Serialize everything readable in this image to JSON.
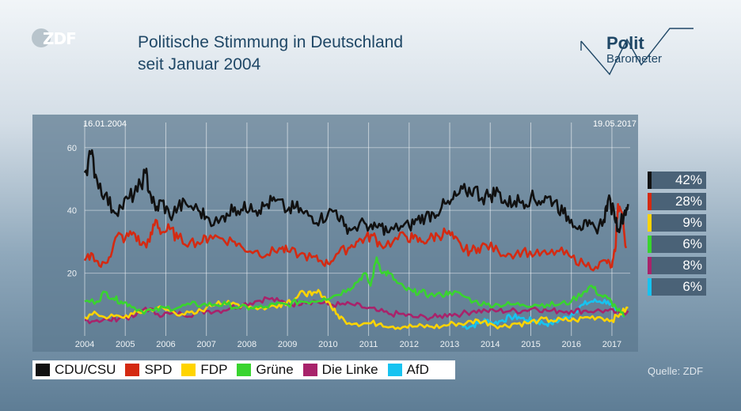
{
  "header": {
    "logo": "ZDF",
    "title_line1": "Politische Stimmung in Deutschland",
    "title_line2": "seit Januar 2004",
    "brand_line1": "Polit",
    "brand_line2": "Barometer"
  },
  "source": "Quelle: ZDF",
  "colors": {
    "CDU/CSU": "#111111",
    "SPD": "#d42a12",
    "FDP": "#ffd400",
    "Grüne": "#39d42f",
    "Die Linke": "#a8236b",
    "AfD": "#17c3f0"
  },
  "chart_data": {
    "type": "line",
    "title": "Politische Stimmung in Deutschland seit Januar 2004",
    "date_start": "16.01.2004",
    "date_end": "19.05.2017",
    "xlim": [
      2004.0,
      2017.45
    ],
    "ylim": [
      0,
      68
    ],
    "y_ticks": [
      20,
      40,
      60
    ],
    "x_ticks": [
      "2004",
      "2005",
      "2006",
      "2007",
      "2008",
      "2009",
      "2010",
      "2011",
      "2012",
      "2013",
      "2014",
      "2015",
      "2016",
      "2017"
    ],
    "series": [
      {
        "name": "CDU/CSU",
        "current": "42%",
        "points": [
          [
            2004.0,
            52
          ],
          [
            2004.15,
            58
          ],
          [
            2004.3,
            50
          ],
          [
            2004.5,
            45
          ],
          [
            2004.7,
            40
          ],
          [
            2004.9,
            41
          ],
          [
            2005.1,
            44
          ],
          [
            2005.3,
            46
          ],
          [
            2005.5,
            52
          ],
          [
            2005.6,
            46
          ],
          [
            2005.75,
            40
          ],
          [
            2005.9,
            43
          ],
          [
            2006.1,
            38
          ],
          [
            2006.3,
            41
          ],
          [
            2006.5,
            42
          ],
          [
            2006.8,
            40
          ],
          [
            2007.0,
            38
          ],
          [
            2007.3,
            36
          ],
          [
            2007.5,
            39
          ],
          [
            2007.7,
            41
          ],
          [
            2007.9,
            40
          ],
          [
            2008.1,
            42
          ],
          [
            2008.3,
            40
          ],
          [
            2008.5,
            42
          ],
          [
            2008.7,
            43
          ],
          [
            2009.0,
            40
          ],
          [
            2009.2,
            41
          ],
          [
            2009.4,
            39
          ],
          [
            2009.6,
            38
          ],
          [
            2009.8,
            37
          ],
          [
            2010.0,
            39
          ],
          [
            2010.2,
            40
          ],
          [
            2010.4,
            35
          ],
          [
            2010.6,
            34
          ],
          [
            2010.9,
            36
          ],
          [
            2011.1,
            34
          ],
          [
            2011.3,
            35
          ],
          [
            2011.5,
            33
          ],
          [
            2011.8,
            35
          ],
          [
            2012.0,
            35
          ],
          [
            2012.2,
            37
          ],
          [
            2012.4,
            38
          ],
          [
            2012.6,
            39
          ],
          [
            2012.8,
            41
          ],
          [
            2013.0,
            42
          ],
          [
            2013.2,
            45
          ],
          [
            2013.4,
            46
          ],
          [
            2013.6,
            47
          ],
          [
            2013.8,
            44
          ],
          [
            2014.0,
            45
          ],
          [
            2014.2,
            46
          ],
          [
            2014.4,
            42
          ],
          [
            2014.6,
            43
          ],
          [
            2014.8,
            43
          ],
          [
            2015.0,
            44
          ],
          [
            2015.2,
            43
          ],
          [
            2015.4,
            44
          ],
          [
            2015.6,
            43
          ],
          [
            2015.8,
            39
          ],
          [
            2016.0,
            37
          ],
          [
            2016.2,
            35
          ],
          [
            2016.4,
            35
          ],
          [
            2016.6,
            34
          ],
          [
            2016.8,
            37
          ],
          [
            2016.9,
            43
          ],
          [
            2017.05,
            40
          ],
          [
            2017.15,
            34
          ],
          [
            2017.3,
            39
          ],
          [
            2017.4,
            42
          ]
        ]
      },
      {
        "name": "SPD",
        "current": "28%",
        "points": [
          [
            2004.0,
            24
          ],
          [
            2004.2,
            26
          ],
          [
            2004.4,
            22
          ],
          [
            2004.6,
            25
          ],
          [
            2004.8,
            32
          ],
          [
            2005.0,
            31
          ],
          [
            2005.2,
            33
          ],
          [
            2005.4,
            29
          ],
          [
            2005.6,
            30
          ],
          [
            2005.75,
            37
          ],
          [
            2005.9,
            33
          ],
          [
            2006.1,
            34
          ],
          [
            2006.3,
            31
          ],
          [
            2006.6,
            30
          ],
          [
            2006.9,
            30
          ],
          [
            2007.1,
            32
          ],
          [
            2007.4,
            31
          ],
          [
            2007.7,
            30
          ],
          [
            2007.9,
            28
          ],
          [
            2008.2,
            27
          ],
          [
            2008.5,
            26
          ],
          [
            2008.8,
            28
          ],
          [
            2009.0,
            27
          ],
          [
            2009.3,
            26
          ],
          [
            2009.6,
            25
          ],
          [
            2009.8,
            24
          ],
          [
            2010.0,
            23
          ],
          [
            2010.2,
            26
          ],
          [
            2010.5,
            28
          ],
          [
            2010.7,
            30
          ],
          [
            2010.9,
            31
          ],
          [
            2011.1,
            32
          ],
          [
            2011.3,
            29
          ],
          [
            2011.6,
            30
          ],
          [
            2011.9,
            32
          ],
          [
            2012.1,
            31
          ],
          [
            2012.3,
            30
          ],
          [
            2012.5,
            31
          ],
          [
            2012.7,
            32
          ],
          [
            2012.9,
            33
          ],
          [
            2013.1,
            31
          ],
          [
            2013.3,
            28
          ],
          [
            2013.5,
            27
          ],
          [
            2013.7,
            28
          ],
          [
            2013.9,
            29
          ],
          [
            2014.2,
            27
          ],
          [
            2014.5,
            26
          ],
          [
            2014.8,
            27
          ],
          [
            2015.1,
            26
          ],
          [
            2015.4,
            26
          ],
          [
            2015.7,
            27
          ],
          [
            2016.0,
            25
          ],
          [
            2016.3,
            23
          ],
          [
            2016.6,
            22
          ],
          [
            2016.85,
            24
          ],
          [
            2017.0,
            22
          ],
          [
            2017.08,
            27
          ],
          [
            2017.15,
            42
          ],
          [
            2017.25,
            39
          ],
          [
            2017.35,
            28
          ]
        ]
      },
      {
        "name": "FDP",
        "current": "9%",
        "points": [
          [
            2004.0,
            6
          ],
          [
            2004.3,
            7
          ],
          [
            2004.6,
            6
          ],
          [
            2004.9,
            6
          ],
          [
            2005.2,
            7
          ],
          [
            2005.5,
            8
          ],
          [
            2005.8,
            9
          ],
          [
            2006.1,
            8
          ],
          [
            2006.4,
            7
          ],
          [
            2006.7,
            7
          ],
          [
            2007.0,
            9
          ],
          [
            2007.3,
            11
          ],
          [
            2007.6,
            10
          ],
          [
            2007.9,
            10
          ],
          [
            2008.2,
            9
          ],
          [
            2008.5,
            9
          ],
          [
            2008.8,
            10
          ],
          [
            2009.0,
            11
          ],
          [
            2009.2,
            12
          ],
          [
            2009.4,
            14
          ],
          [
            2009.6,
            13
          ],
          [
            2009.8,
            14
          ],
          [
            2010.0,
            11
          ],
          [
            2010.2,
            7
          ],
          [
            2010.4,
            5
          ],
          [
            2010.7,
            4
          ],
          [
            2011.0,
            4
          ],
          [
            2011.3,
            4
          ],
          [
            2011.6,
            3
          ],
          [
            2011.9,
            3
          ],
          [
            2012.2,
            3
          ],
          [
            2012.5,
            3
          ],
          [
            2012.8,
            3
          ],
          [
            2013.1,
            4
          ],
          [
            2013.4,
            4
          ],
          [
            2013.7,
            5
          ],
          [
            2014.0,
            4
          ],
          [
            2014.3,
            3
          ],
          [
            2014.6,
            4
          ],
          [
            2014.9,
            4
          ],
          [
            2015.2,
            5
          ],
          [
            2015.5,
            5
          ],
          [
            2015.8,
            5
          ],
          [
            2016.1,
            5
          ],
          [
            2016.4,
            6
          ],
          [
            2016.7,
            6
          ],
          [
            2017.0,
            5
          ],
          [
            2017.2,
            7
          ],
          [
            2017.4,
            9
          ]
        ]
      },
      {
        "name": "Grüne",
        "current": "6%",
        "points": [
          [
            2004.0,
            11
          ],
          [
            2004.3,
            11
          ],
          [
            2004.5,
            14
          ],
          [
            2004.7,
            12
          ],
          [
            2004.9,
            11
          ],
          [
            2005.1,
            10
          ],
          [
            2005.4,
            8
          ],
          [
            2005.7,
            8
          ],
          [
            2006.0,
            9
          ],
          [
            2006.3,
            9
          ],
          [
            2006.6,
            10
          ],
          [
            2006.9,
            10
          ],
          [
            2007.2,
            10
          ],
          [
            2007.5,
            10
          ],
          [
            2007.8,
            9
          ],
          [
            2008.1,
            9
          ],
          [
            2008.4,
            9
          ],
          [
            2008.7,
            10
          ],
          [
            2009.0,
            10
          ],
          [
            2009.3,
            11
          ],
          [
            2009.6,
            11
          ],
          [
            2009.9,
            12
          ],
          [
            2010.2,
            13
          ],
          [
            2010.5,
            15
          ],
          [
            2010.7,
            17
          ],
          [
            2010.9,
            20
          ],
          [
            2011.05,
            16
          ],
          [
            2011.2,
            25
          ],
          [
            2011.35,
            20
          ],
          [
            2011.5,
            20
          ],
          [
            2011.7,
            17
          ],
          [
            2011.9,
            15
          ],
          [
            2012.1,
            14
          ],
          [
            2012.3,
            14
          ],
          [
            2012.5,
            13
          ],
          [
            2012.8,
            13
          ],
          [
            2013.0,
            14
          ],
          [
            2013.3,
            13
          ],
          [
            2013.6,
            11
          ],
          [
            2013.9,
            10
          ],
          [
            2014.2,
            10
          ],
          [
            2014.5,
            10
          ],
          [
            2014.8,
            10
          ],
          [
            2015.1,
            10
          ],
          [
            2015.4,
            10
          ],
          [
            2015.7,
            10
          ],
          [
            2016.0,
            11
          ],
          [
            2016.3,
            14
          ],
          [
            2016.5,
            16
          ],
          [
            2016.7,
            13
          ],
          [
            2016.9,
            12
          ],
          [
            2017.1,
            9
          ],
          [
            2017.3,
            6
          ]
        ]
      },
      {
        "name": "Die Linke",
        "current": "8%",
        "points": [
          [
            2004.0,
            5
          ],
          [
            2004.3,
            5
          ],
          [
            2004.6,
            5
          ],
          [
            2004.9,
            6
          ],
          [
            2005.2,
            6
          ],
          [
            2005.5,
            9
          ],
          [
            2005.8,
            7
          ],
          [
            2006.1,
            7
          ],
          [
            2006.4,
            7
          ],
          [
            2006.7,
            7
          ],
          [
            2007.0,
            8
          ],
          [
            2007.3,
            8
          ],
          [
            2007.6,
            9
          ],
          [
            2007.9,
            10
          ],
          [
            2008.2,
            11
          ],
          [
            2008.5,
            12
          ],
          [
            2008.8,
            11
          ],
          [
            2009.1,
            10
          ],
          [
            2009.4,
            11
          ],
          [
            2009.7,
            11
          ],
          [
            2010.0,
            10
          ],
          [
            2010.3,
            10
          ],
          [
            2010.6,
            10
          ],
          [
            2010.9,
            9
          ],
          [
            2011.2,
            8
          ],
          [
            2011.5,
            7
          ],
          [
            2011.8,
            7
          ],
          [
            2012.1,
            6
          ],
          [
            2012.4,
            6
          ],
          [
            2012.7,
            6
          ],
          [
            2013.0,
            7
          ],
          [
            2013.3,
            7
          ],
          [
            2013.6,
            8
          ],
          [
            2013.9,
            8
          ],
          [
            2014.2,
            8
          ],
          [
            2014.5,
            8
          ],
          [
            2014.8,
            8
          ],
          [
            2015.1,
            9
          ],
          [
            2015.4,
            8
          ],
          [
            2015.7,
            8
          ],
          [
            2016.0,
            8
          ],
          [
            2016.3,
            8
          ],
          [
            2016.6,
            8
          ],
          [
            2016.9,
            8
          ],
          [
            2017.2,
            7
          ],
          [
            2017.4,
            8
          ]
        ]
      },
      {
        "name": "AfD",
        "current": "6%",
        "points": [
          [
            2013.3,
            3
          ],
          [
            2013.5,
            3
          ],
          [
            2013.7,
            4
          ],
          [
            2013.9,
            5
          ],
          [
            2014.1,
            4
          ],
          [
            2014.3,
            5
          ],
          [
            2014.5,
            6
          ],
          [
            2014.7,
            6
          ],
          [
            2014.9,
            5
          ],
          [
            2015.1,
            5
          ],
          [
            2015.3,
            4
          ],
          [
            2015.5,
            4
          ],
          [
            2015.7,
            5
          ],
          [
            2015.9,
            6
          ],
          [
            2016.1,
            8
          ],
          [
            2016.3,
            10
          ],
          [
            2016.5,
            11
          ],
          [
            2016.7,
            11
          ],
          [
            2016.9,
            11
          ],
          [
            2017.1,
            8
          ],
          [
            2017.3,
            6
          ]
        ]
      }
    ]
  }
}
